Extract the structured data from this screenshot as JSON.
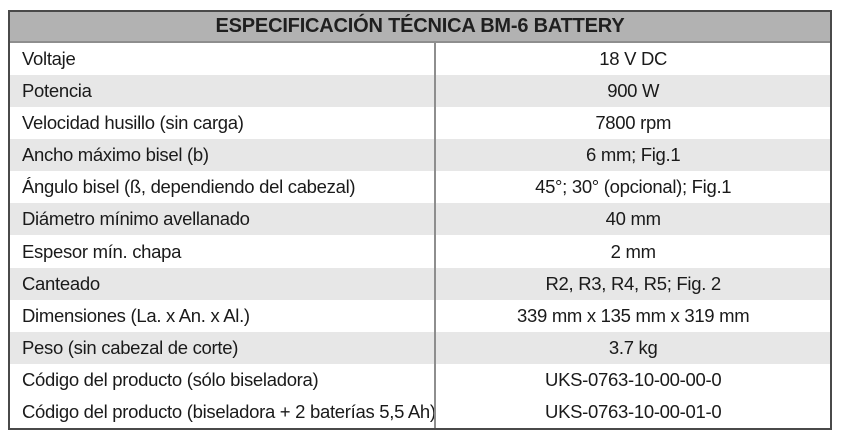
{
  "table": {
    "title": "ESPECIFICACIÓN TÉCNICA BM-6 BATTERY",
    "rows": [
      {
        "label": "Voltaje",
        "value": "18 V DC"
      },
      {
        "label": "Potencia",
        "value": "900 W"
      },
      {
        "label": "Velocidad husillo (sin carga)",
        "value": "7800 rpm"
      },
      {
        "label": "Ancho máximo bisel (b)",
        "value": "6 mm; Fig.1"
      },
      {
        "label": "Ángulo bisel (ß, dependiendo del cabezal)",
        "value": "45°; 30° (opcional); Fig.1"
      },
      {
        "label": "Diámetro mínimo avellanado",
        "value": "40 mm"
      },
      {
        "label": "Espesor mín. chapa",
        "value": "2 mm"
      },
      {
        "label": "Canteado",
        "value": "R2, R3, R4, R5; Fig. 2"
      },
      {
        "label": "Dimensiones (La. x An. x Al.)",
        "value": "339 mm x 135 mm x 319 mm"
      },
      {
        "label": "Peso (sin cabezal de corte)",
        "value": "3.7 kg"
      },
      {
        "label": "Código del producto (sólo biseladora)",
        "value": "UKS-0763-10-00-00-0"
      },
      {
        "label": "Código del producto (biseladora + 2 baterías 5,5 Ah)",
        "value": "UKS-0763-10-00-01-0"
      }
    ]
  },
  "colors": {
    "header_bg": "#b2b2b2",
    "row_alt_bg": "#e7e7e7",
    "border_dark": "#4a4a4a",
    "divider": "#8e8e8e",
    "text": "#1a1a1a"
  }
}
